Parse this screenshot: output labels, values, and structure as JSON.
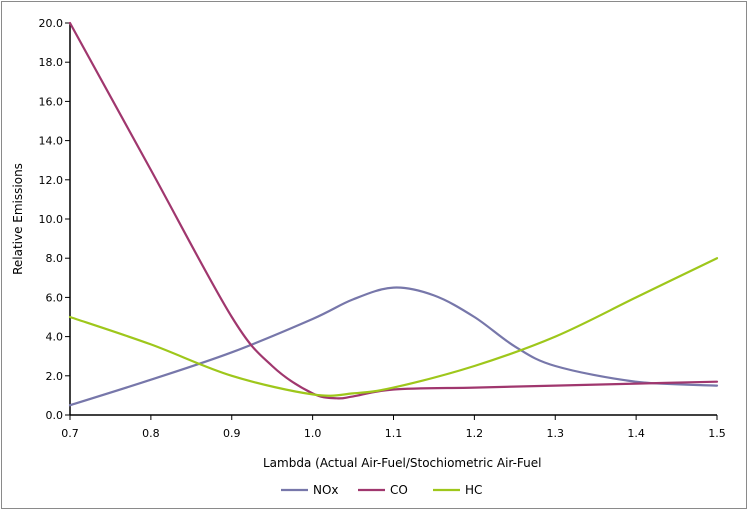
{
  "chart_data": {
    "type": "line",
    "title": "",
    "xlabel": "Lambda (Actual Air-Fuel/Stochiometric Air-Fuel",
    "ylabel": "Relative Emissions",
    "xlim": [
      0.7,
      1.5
    ],
    "ylim": [
      0,
      20
    ],
    "x_ticks": [
      "0.7",
      "0.8",
      "0.9",
      "1.0",
      "1.1",
      "1.2",
      "1.3",
      "1.4",
      "1.5"
    ],
    "y_ticks": [
      "0.0",
      "2.0",
      "4.0",
      "6.0",
      "8.0",
      "10.0",
      "12.0",
      "14.0",
      "16.0",
      "18.0",
      "20.0"
    ],
    "grid": false,
    "legend_position": "bottom",
    "series": [
      {
        "name": "NOx",
        "color": "#7777aa",
        "points": [
          [
            0.7,
            0.5
          ],
          [
            0.8,
            1.8
          ],
          [
            0.9,
            3.2
          ],
          [
            1.0,
            4.9
          ],
          [
            1.05,
            5.9
          ],
          [
            1.1,
            6.5
          ],
          [
            1.15,
            6.1
          ],
          [
            1.2,
            5.0
          ],
          [
            1.25,
            3.5
          ],
          [
            1.3,
            2.5
          ],
          [
            1.4,
            1.7
          ],
          [
            1.5,
            1.5
          ]
        ]
      },
      {
        "name": "CO",
        "color": "#a0376e",
        "points": [
          [
            0.7,
            20.0
          ],
          [
            0.8,
            12.5
          ],
          [
            0.9,
            5.0
          ],
          [
            0.95,
            2.5
          ],
          [
            1.0,
            1.1
          ],
          [
            1.03,
            0.85
          ],
          [
            1.05,
            0.95
          ],
          [
            1.1,
            1.3
          ],
          [
            1.2,
            1.4
          ],
          [
            1.3,
            1.5
          ],
          [
            1.4,
            1.6
          ],
          [
            1.5,
            1.7
          ]
        ]
      },
      {
        "name": "HC",
        "color": "#9ec71b",
        "points": [
          [
            0.7,
            5.0
          ],
          [
            0.8,
            3.6
          ],
          [
            0.9,
            2.0
          ],
          [
            1.0,
            1.05
          ],
          [
            1.05,
            1.1
          ],
          [
            1.1,
            1.4
          ],
          [
            1.2,
            2.5
          ],
          [
            1.3,
            4.0
          ],
          [
            1.4,
            6.0
          ],
          [
            1.5,
            8.0
          ]
        ]
      }
    ]
  }
}
